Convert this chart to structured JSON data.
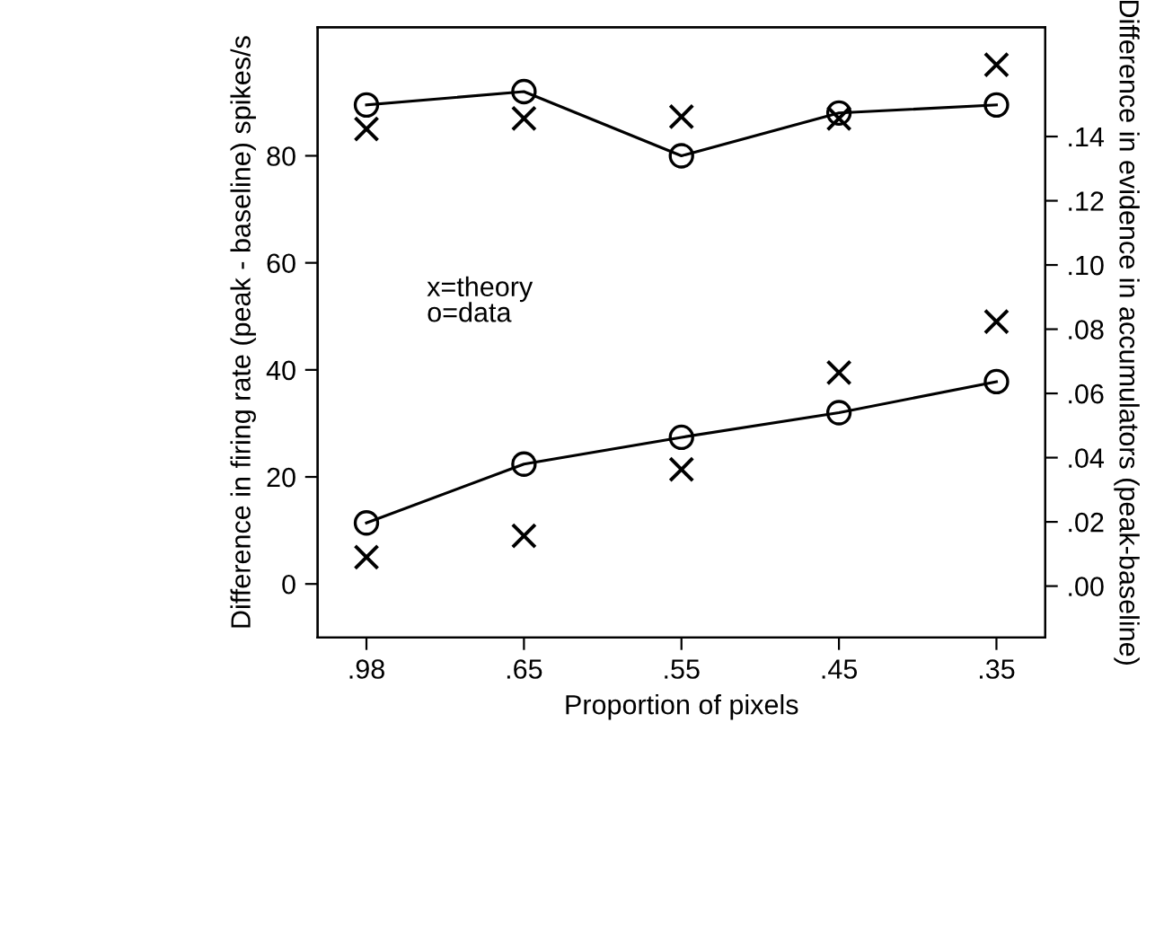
{
  "chart_data": {
    "type": "line",
    "xlabel": "Proportion of pixels",
    "ylabel": "Difference in firing rate (peak - baseline) spikes/s",
    "y2label": "Difference in evidence in accumulators (peak-baseline)",
    "categories": [
      ".98",
      ".65",
      ".55",
      ".45",
      ".35"
    ],
    "series": [
      {
        "marker": "circle",
        "color": "#000000",
        "values": [
          89.5,
          92,
          80,
          88,
          89.5
        ]
      },
      {
        "marker": "circle",
        "color": "#000000",
        "values": [
          11.4,
          22.4,
          27.4,
          32,
          37.8
        ]
      },
      {
        "type": "scatter",
        "marker": "cross",
        "color": "#000000",
        "values": [
          85,
          87,
          87.3,
          87,
          97
        ]
      },
      {
        "type": "scatter",
        "marker": "cross",
        "color": "#000000",
        "values": [
          5,
          9,
          21.4,
          39.5,
          49
        ]
      }
    ],
    "ylim": [
      -10,
      104
    ],
    "yticks": [
      0,
      20,
      40,
      60,
      80
    ],
    "y2lim": [
      -0.016,
      0.174
    ],
    "y2ticks": [
      {
        "value": 0,
        "label": ".00"
      },
      {
        "value": 0.02,
        "label": ".02"
      },
      {
        "value": 0.04,
        "label": ".04"
      },
      {
        "value": 0.06,
        "label": ".06"
      },
      {
        "value": 0.08,
        "label": ".08"
      },
      {
        "value": 0.1,
        "label": ".10"
      },
      {
        "value": 0.12,
        "label": ".12"
      },
      {
        "value": 0.14,
        "label": ".14"
      }
    ],
    "annotations": [
      "x=theory\no=data"
    ],
    "grid": false,
    "legend": false
  }
}
